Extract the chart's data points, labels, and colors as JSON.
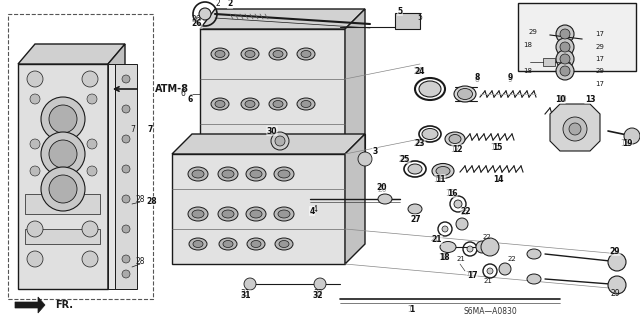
{
  "bg_color": "#f0f0f0",
  "fig_width": 6.4,
  "fig_height": 3.19,
  "dpi": 100,
  "atm_label": "ATM-8",
  "fr_label": "FR.",
  "diagram_code": "S6MA—A0830",
  "line_color": "#1a1a1a",
  "fill_light": "#e8e8e8",
  "fill_mid": "#d0d0d0",
  "fill_dark": "#b0b0b0"
}
